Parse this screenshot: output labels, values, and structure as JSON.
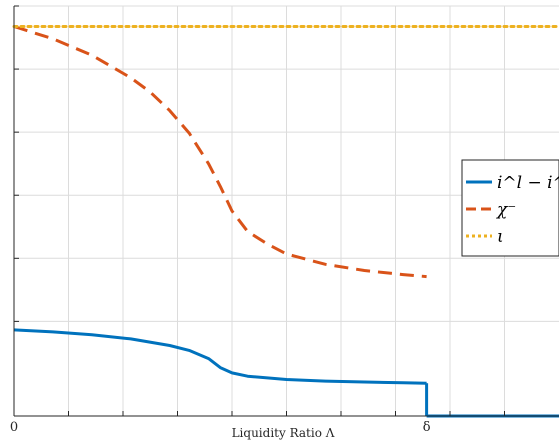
{
  "chart_data": {
    "type": "line",
    "title": "",
    "xlabel": "Liquidity Ratio Λ",
    "ylabel": "",
    "xlim": [
      0,
      1.4
    ],
    "ylim": [
      0,
      1.0
    ],
    "x_tick_values": [
      0,
      1.06
    ],
    "x_tick_labels": [
      "0",
      "δ"
    ],
    "grid": true,
    "legend": {
      "position": "right",
      "entries": [
        {
          "label": "i^l − i^a",
          "series_index": 0
        },
        {
          "label": "χ⁻",
          "series_index": 1
        },
        {
          "label": "ι",
          "series_index": 2
        }
      ]
    },
    "series": [
      {
        "name": "i^l − i^a",
        "color": "#0072BD",
        "style": "solid",
        "segments": [
          {
            "x": [
              0,
              0.1,
              0.2,
              0.3,
              0.4,
              0.45,
              0.5,
              0.53,
              0.56,
              0.6,
              0.7,
              0.8,
              0.9,
              1.0,
              1.06
            ],
            "y": [
              0.21,
              0.205,
              0.198,
              0.188,
              0.172,
              0.16,
              0.14,
              0.118,
              0.105,
              0.097,
              0.089,
              0.085,
              0.083,
              0.081,
              0.08
            ]
          },
          {
            "x": [
              1.06,
              1.06
            ],
            "y": [
              0.08,
              0
            ]
          },
          {
            "x": [
              1.06,
              1.4
            ],
            "y": [
              0,
              0
            ]
          }
        ]
      },
      {
        "name": "χ⁻",
        "color": "#D95319",
        "style": "dashed",
        "segments": [
          {
            "x": [
              0,
              0.1,
              0.2,
              0.3,
              0.35,
              0.4,
              0.45,
              0.5,
              0.53,
              0.56,
              0.6,
              0.65,
              0.7,
              0.8,
              0.9,
              1.0,
              1.06
            ],
            "y": [
              0.95,
              0.92,
              0.88,
              0.825,
              0.79,
              0.745,
              0.69,
              0.615,
              0.56,
              0.5,
              0.45,
              0.42,
              0.395,
              0.37,
              0.355,
              0.345,
              0.34
            ]
          }
        ]
      },
      {
        "name": "ι",
        "color": "#EDB120",
        "style": "dotted",
        "segments": [
          {
            "x": [
              0,
              1.4
            ],
            "y": [
              0.95,
              0.95
            ]
          }
        ]
      }
    ]
  }
}
